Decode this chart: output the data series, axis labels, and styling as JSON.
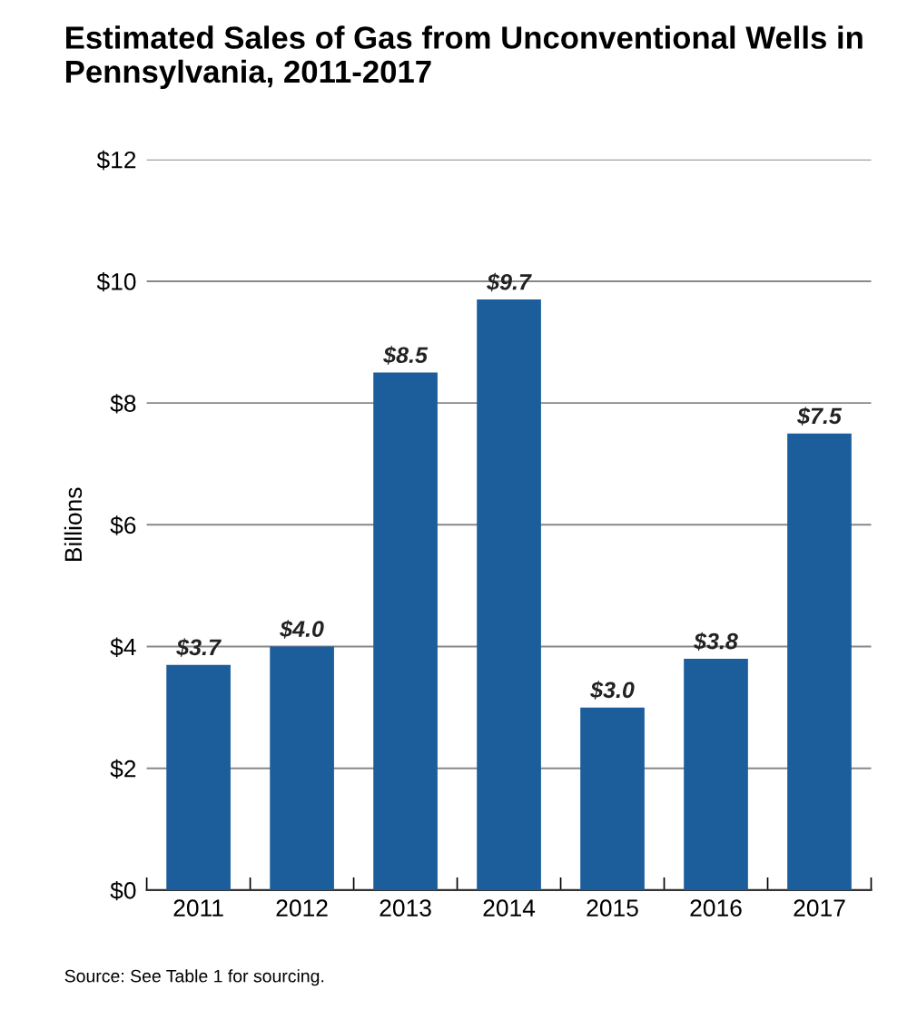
{
  "chart_data": {
    "type": "bar",
    "title": "Estimated Sales of Gas from Unconventional Wells in\nPennsylvania, 2011-2017",
    "ylabel": "Billions",
    "categories": [
      "2011",
      "2012",
      "2013",
      "2014",
      "2015",
      "2016",
      "2017"
    ],
    "values": [
      3.7,
      4.0,
      8.5,
      9.7,
      3.0,
      3.8,
      7.5
    ],
    "value_labels": [
      "$3.7",
      "$4.0",
      "$8.5",
      "$9.7",
      "$3.0",
      "$3.8",
      "$7.5"
    ],
    "color": "#1b5e9b",
    "ylim": [
      0,
      12
    ],
    "yticks": [
      {
        "value": 0,
        "label": "$0"
      },
      {
        "value": 2,
        "label": "$2"
      },
      {
        "value": 4,
        "label": "$4"
      },
      {
        "value": 6,
        "label": "$6"
      },
      {
        "value": 8,
        "label": "$8"
      },
      {
        "value": 10,
        "label": "$10"
      },
      {
        "value": 12,
        "label": "$12"
      }
    ],
    "grid": "y",
    "annotations": [
      "Source: See Table 1 for sourcing."
    ]
  }
}
